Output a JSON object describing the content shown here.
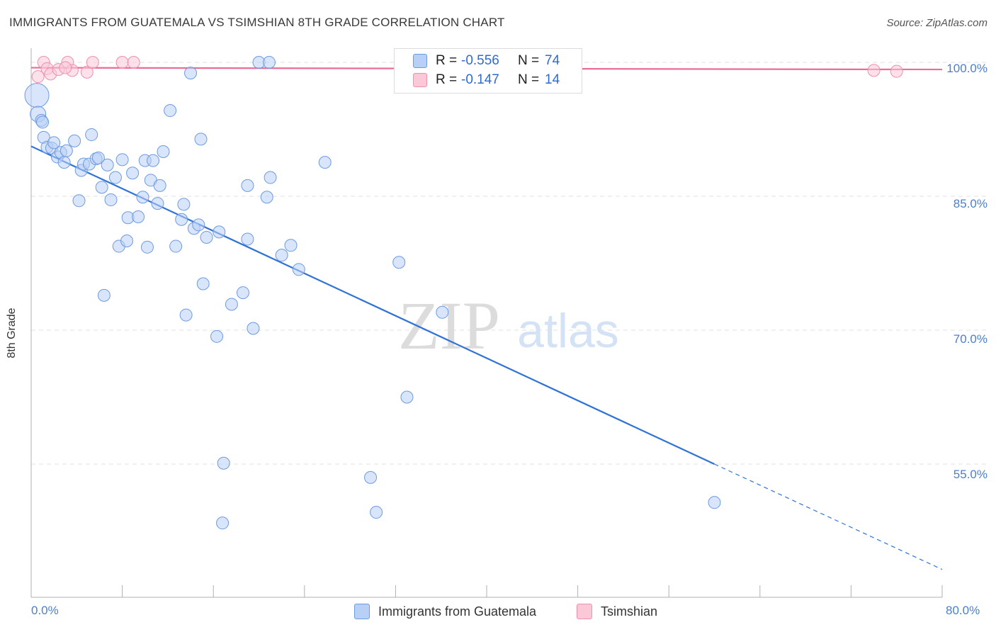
{
  "title": "IMMIGRANTS FROM GUATEMALA VS TSIMSHIAN 8TH GRADE CORRELATION CHART",
  "source": "Source: ZipAtlas.com",
  "watermark": {
    "zip": "ZIP",
    "atlas": "atlas"
  },
  "legend": {
    "r_label": "R =",
    "n_label": "N =",
    "rows": [
      {
        "r": "-0.556",
        "n": "74",
        "fill": "#b8d0f5",
        "stroke": "#6e9be0"
      },
      {
        "r": "-0.147",
        "n": "14",
        "fill": "#fbc8d8",
        "stroke": "#ee8fae"
      }
    ]
  },
  "bottom_legend": [
    {
      "label": "Immigrants from Guatemala",
      "fill": "#b8d0f5",
      "stroke": "#6e9be0"
    },
    {
      "label": "Tsimshian",
      "fill": "#fbc8d8",
      "stroke": "#ee8fae"
    }
  ],
  "chart_data": {
    "type": "scatter",
    "title": "IMMIGRANTS FROM GUATEMALA VS TSIMSHIAN 8TH GRADE CORRELATION CHART",
    "xlabel": "",
    "ylabel": "8th Grade",
    "xlim": [
      0,
      80
    ],
    "ylim": [
      42,
      101.5
    ],
    "x_tick_labels": [
      {
        "value": 0,
        "label": "0.0%"
      },
      {
        "value": 80,
        "label": "80.0%"
      }
    ],
    "y_tick_labels": [
      {
        "value": 100,
        "label": "100.0%"
      },
      {
        "value": 85,
        "label": "85.0%"
      },
      {
        "value": 70,
        "label": "70.0%"
      },
      {
        "value": 55,
        "label": "55.0%"
      }
    ],
    "grid": true,
    "colors": {
      "blue_line": "#2f72d6",
      "pink_line": "#ea6d95",
      "grid": "#e2e2e2",
      "axis": "#b0b0b0",
      "tick_text": "#4a7fd0"
    },
    "series": [
      {
        "name": "Immigrants from Guatemala",
        "color": "#6e9be0",
        "fill": "#b8d0f5",
        "r": -0.556,
        "n": 74,
        "trend": {
          "x": [
            0,
            60
          ],
          "y": [
            90.6,
            55.0
          ],
          "dashed_to": [
            80,
            43.2
          ]
        },
        "points": [
          [
            0.5,
            96.3,
            2.0
          ],
          [
            0.6,
            94.2,
            1.3
          ],
          [
            0.9,
            93.5,
            1.0
          ],
          [
            1.1,
            91.6,
            1.0
          ],
          [
            1.4,
            90.5,
            1.0
          ],
          [
            1.8,
            90.4,
            1.0
          ],
          [
            2.0,
            91.0,
            1.0
          ],
          [
            2.3,
            89.4,
            1.0
          ],
          [
            2.6,
            89.9,
            1.0
          ],
          [
            2.9,
            88.8,
            1.0
          ],
          [
            3.1,
            90.1,
            1.0
          ],
          [
            3.8,
            91.2,
            1.0
          ],
          [
            4.2,
            84.5,
            1.0
          ],
          [
            4.4,
            87.9,
            1.0
          ],
          [
            4.6,
            88.6,
            1.0
          ],
          [
            5.1,
            88.6,
            1.0
          ],
          [
            5.3,
            91.9,
            1.0
          ],
          [
            5.7,
            89.2,
            1.0
          ],
          [
            5.9,
            89.3,
            1.0
          ],
          [
            6.2,
            86.0,
            1.0
          ],
          [
            6.4,
            73.9,
            1.0
          ],
          [
            6.7,
            88.5,
            1.0
          ],
          [
            7.0,
            84.6,
            1.0
          ],
          [
            7.4,
            87.1,
            1.0
          ],
          [
            7.7,
            79.4,
            1.0
          ],
          [
            8.0,
            89.1,
            1.0
          ],
          [
            8.4,
            80.0,
            1.0
          ],
          [
            8.5,
            82.6,
            1.0
          ],
          [
            8.9,
            87.6,
            1.0
          ],
          [
            9.4,
            82.7,
            1.0
          ],
          [
            9.8,
            84.9,
            1.0
          ],
          [
            10.0,
            89.0,
            1.0
          ],
          [
            10.2,
            79.3,
            1.0
          ],
          [
            10.5,
            86.8,
            1.0
          ],
          [
            10.7,
            89.0,
            1.0
          ],
          [
            11.1,
            84.2,
            1.0
          ],
          [
            11.3,
            86.2,
            1.0
          ],
          [
            11.6,
            90.0,
            1.0
          ],
          [
            12.2,
            94.6,
            1.0
          ],
          [
            12.7,
            79.4,
            1.0
          ],
          [
            13.2,
            82.4,
            1.0
          ],
          [
            13.4,
            84.1,
            1.0
          ],
          [
            13.6,
            71.7,
            1.0
          ],
          [
            14.0,
            98.8,
            1.0
          ],
          [
            14.3,
            81.4,
            1.0
          ],
          [
            14.7,
            81.8,
            1.0
          ],
          [
            14.9,
            91.4,
            1.0
          ],
          [
            15.1,
            75.2,
            1.0
          ],
          [
            15.4,
            80.4,
            1.0
          ],
          [
            16.3,
            69.3,
            1.0
          ],
          [
            16.5,
            81.0,
            1.0
          ],
          [
            16.8,
            48.4,
            1.0
          ],
          [
            16.9,
            55.1,
            1.0
          ],
          [
            17.6,
            72.9,
            1.0
          ],
          [
            18.6,
            74.2,
            1.0
          ],
          [
            19.0,
            80.2,
            1.0
          ],
          [
            19.0,
            86.2,
            1.0
          ],
          [
            19.5,
            70.2,
            1.0
          ],
          [
            20.0,
            100.0,
            1.0
          ],
          [
            20.7,
            84.9,
            1.0
          ],
          [
            21.0,
            87.1,
            1.0
          ],
          [
            20.9,
            100.0,
            1.0
          ],
          [
            22.0,
            78.4,
            1.0
          ],
          [
            22.8,
            79.5,
            1.0
          ],
          [
            23.5,
            76.8,
            1.0
          ],
          [
            25.8,
            88.8,
            1.0
          ],
          [
            29.8,
            53.5,
            1.0
          ],
          [
            30.3,
            49.6,
            1.0
          ],
          [
            32.3,
            77.6,
            1.0
          ],
          [
            33.0,
            62.5,
            1.0
          ],
          [
            36.1,
            72.0,
            1.0
          ],
          [
            36.0,
            100.0,
            1.0
          ],
          [
            60.0,
            50.7,
            1.0
          ],
          [
            1.0,
            93.3,
            1.0
          ]
        ]
      },
      {
        "name": "Tsimshian",
        "color": "#ee8fae",
        "fill": "#fbc8d8",
        "r": -0.147,
        "n": 14,
        "trend": {
          "x": [
            0,
            80
          ],
          "y": [
            99.4,
            99.2
          ]
        },
        "points": [
          [
            0.6,
            98.4,
            1.0
          ],
          [
            1.1,
            100.0,
            1.0
          ],
          [
            1.4,
            99.3,
            1.0
          ],
          [
            1.7,
            98.7,
            1.0
          ],
          [
            2.4,
            99.2,
            1.0
          ],
          [
            3.2,
            100.0,
            1.0
          ],
          [
            3.6,
            99.1,
            1.0
          ],
          [
            4.9,
            98.9,
            1.0
          ],
          [
            5.4,
            100.0,
            1.0
          ],
          [
            8.0,
            100.0,
            1.0
          ],
          [
            9.0,
            100.0,
            1.0
          ],
          [
            74.0,
            99.1,
            1.0
          ],
          [
            76.0,
            99.0,
            1.0
          ],
          [
            3.0,
            99.4,
            1.0
          ]
        ]
      }
    ]
  }
}
